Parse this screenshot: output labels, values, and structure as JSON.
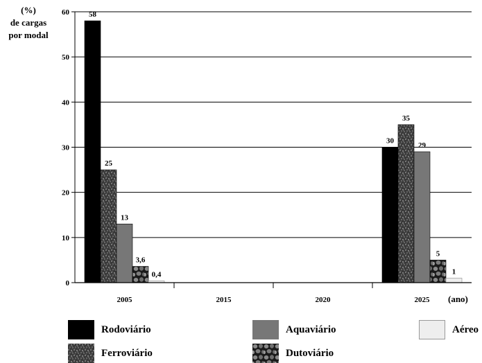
{
  "chart_data": {
    "type": "bar",
    "y_axis_label": "(%)\nde cargas\npor modal",
    "x_axis_label": "(ano)",
    "ylim": [
      0,
      60
    ],
    "y_ticks": [
      0,
      10,
      20,
      30,
      40,
      50,
      60
    ],
    "grid": true,
    "categories": [
      "2005",
      "2015",
      "2020",
      "2025"
    ],
    "series": [
      {
        "name": "Rodoviário",
        "values": [
          58,
          null,
          null,
          30
        ],
        "labels": [
          "58",
          "",
          "",
          "30"
        ],
        "fill": "#000000"
      },
      {
        "name": "Ferroviário",
        "values": [
          25,
          null,
          null,
          35
        ],
        "labels": [
          "25",
          "",
          "",
          "35"
        ],
        "fill": "texture-speckle"
      },
      {
        "name": "Aquaviário",
        "values": [
          13,
          null,
          null,
          29
        ],
        "labels": [
          "13",
          "",
          "",
          "29"
        ],
        "fill": "#777777"
      },
      {
        "name": "Dutoviário",
        "values": [
          3.6,
          null,
          null,
          5
        ],
        "labels": [
          "3,6",
          "",
          "",
          "5"
        ],
        "fill": "texture-cobblestone"
      },
      {
        "name": "Aéreo",
        "values": [
          0.4,
          null,
          null,
          1
        ],
        "labels": [
          "0,4",
          "",
          "",
          "1"
        ],
        "fill": "#eeeeee"
      }
    ],
    "legend_placement": "bottom"
  }
}
